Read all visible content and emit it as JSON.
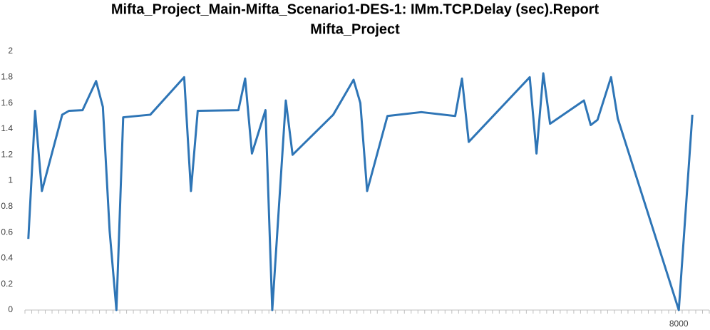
{
  "chart_data": {
    "type": "line",
    "title": "Mifta_Project_Main-Mifta_Scenario1-DES-1: IMm.TCP.Delay (sec).Report",
    "subtitle": "Mifta_Project",
    "categories": [
      null,
      null,
      null,
      null,
      null,
      null,
      null,
      null,
      null,
      null,
      null,
      null,
      null,
      null,
      null,
      null,
      null,
      null,
      null,
      null,
      null,
      null,
      null,
      null,
      null,
      null,
      null,
      null,
      null,
      null,
      null,
      null,
      null,
      null,
      null,
      null,
      null,
      null,
      null,
      null,
      null,
      null,
      null,
      null,
      null,
      null,
      null,
      null,
      null,
      null,
      null,
      null,
      null,
      null,
      null,
      null,
      null,
      null,
      null,
      null,
      null,
      null,
      null,
      null,
      null,
      null,
      null,
      null,
      null,
      null,
      null,
      null,
      null,
      null,
      null,
      null,
      null,
      null,
      null,
      null,
      null,
      null,
      null,
      null,
      null,
      null,
      null,
      null,
      null,
      null,
      null,
      null,
      null,
      null,
      null,
      null,
      "8000",
      null,
      null,
      null,
      null
    ],
    "series": [
      {
        "color": "#2e75b6",
        "values": [
          0.55,
          1.54,
          0.92,
          null,
          null,
          1.51,
          1.54,
          null,
          1.545,
          null,
          1.77,
          1.57,
          0.61,
          0,
          1.49,
          null,
          null,
          null,
          1.51,
          null,
          null,
          null,
          null,
          1.8,
          0.92,
          1.54,
          null,
          null,
          null,
          null,
          null,
          1.545,
          1.79,
          1.21,
          null,
          1.545,
          0,
          null,
          1.62,
          1.2,
          null,
          null,
          null,
          null,
          null,
          1.51,
          null,
          null,
          1.78,
          1.6,
          0.92,
          null,
          null,
          1.5,
          null,
          null,
          null,
          null,
          1.53,
          null,
          null,
          null,
          null,
          1.5,
          1.79,
          1.3,
          null,
          null,
          null,
          null,
          null,
          null,
          null,
          null,
          1.8,
          1.21,
          1.83,
          1.44,
          null,
          null,
          null,
          null,
          1.62,
          1.43,
          1.47,
          null,
          1.8,
          1.48,
          null,
          null,
          null,
          null,
          null,
          null,
          null,
          null,
          0,
          null,
          1.51,
          null,
          null
        ]
      }
    ],
    "span_gaps": true,
    "ylim": [
      0,
      2
    ],
    "yticks": [
      0,
      0.2,
      0.4,
      0.6,
      0.8,
      1,
      1.2,
      1.4,
      1.6,
      1.8,
      2
    ],
    "grid": false
  }
}
